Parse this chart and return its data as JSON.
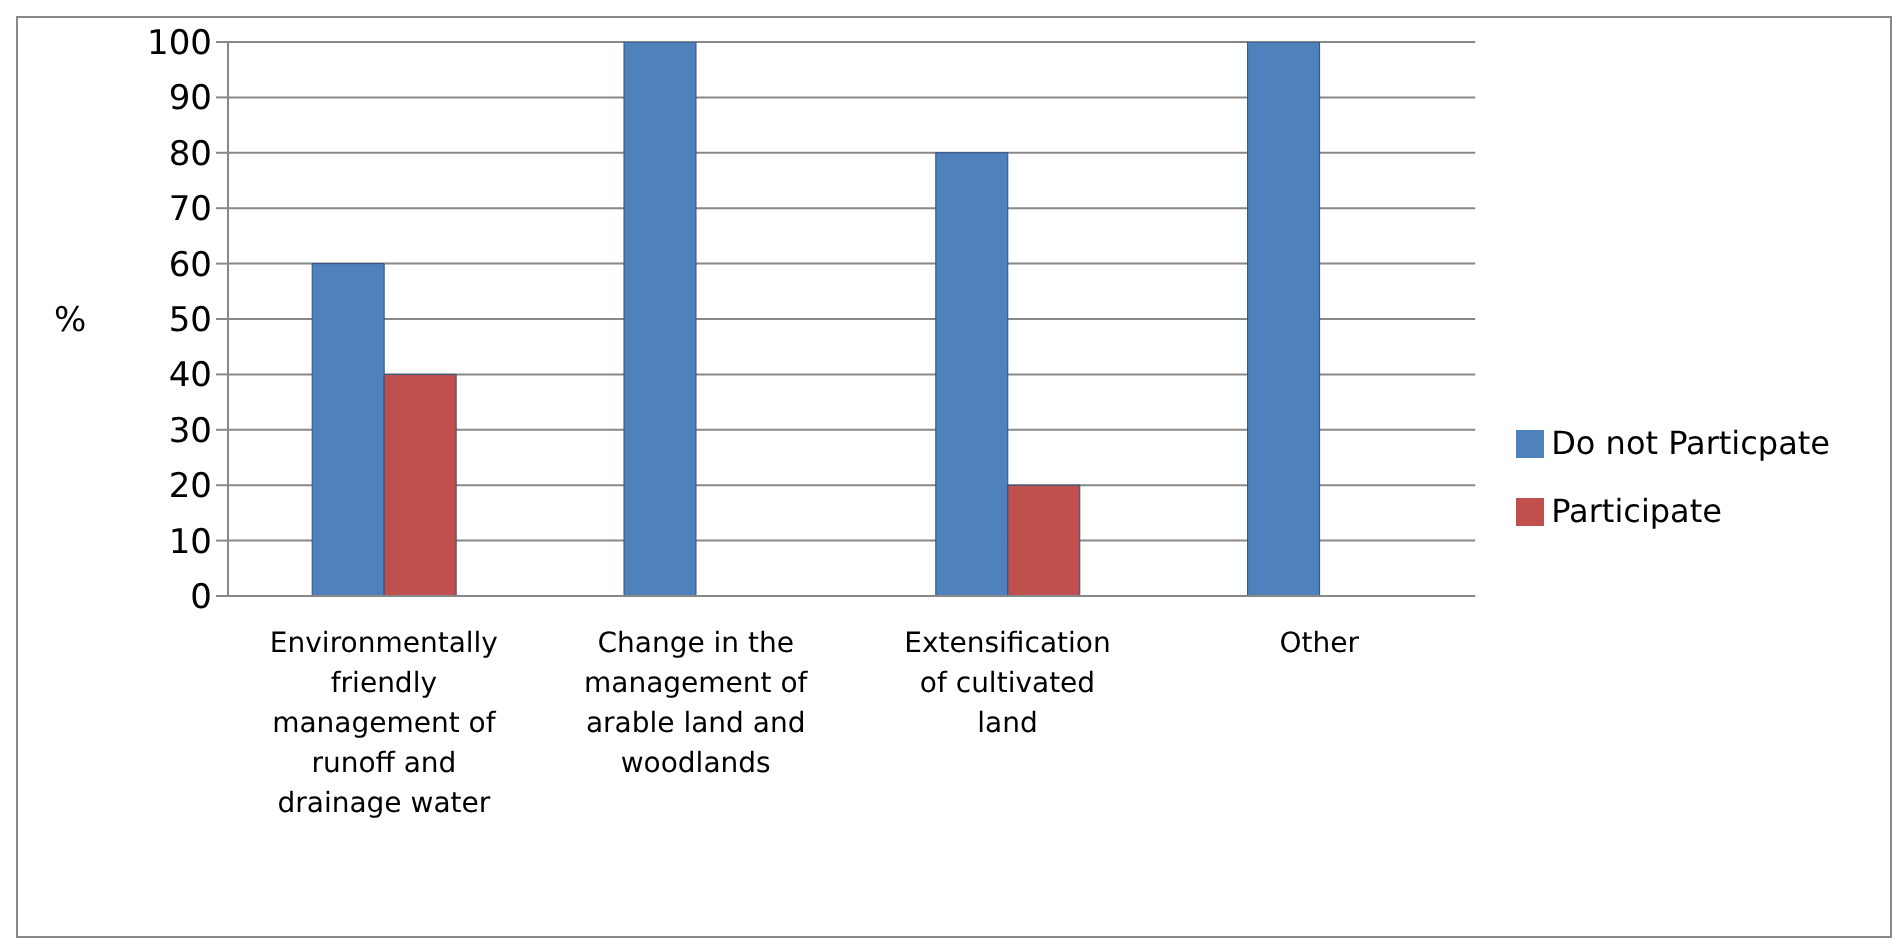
{
  "chart_data": {
    "type": "bar",
    "ylabel": "%",
    "categories": [
      "Environmentally friendly management of runoff and drainage water",
      "Change in the management of arable land and woodlands",
      "Extensification of cultivated land",
      "Other"
    ],
    "series": [
      {
        "name": "Do not Particpate",
        "color": "#4f81bd",
        "values": [
          60,
          100,
          80,
          100
        ]
      },
      {
        "name": "Participate",
        "color": "#c0504d",
        "values": [
          40,
          0,
          20,
          0
        ]
      }
    ],
    "ylim": [
      0,
      100
    ],
    "yticks": [
      0,
      10,
      20,
      30,
      40,
      50,
      60,
      70,
      80,
      90,
      100
    ],
    "grid": "y",
    "legend": "right"
  }
}
